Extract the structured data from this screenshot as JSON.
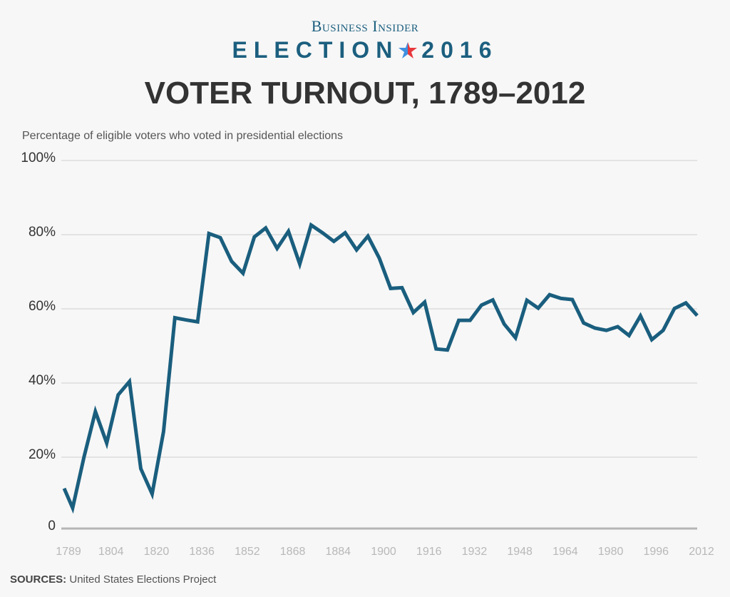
{
  "header": {
    "brand": "Business Insider",
    "election_word": "ELECTION",
    "election_year": "2016",
    "star_icon": "star-icon",
    "title": "VOTER TURNOUT, 1789–2012"
  },
  "footer": {
    "sources_label": "SOURCES:",
    "sources_text": " United States Elections Project"
  },
  "colors": {
    "line": "#1a5e7e",
    "brand": "#1c5f7f",
    "star_blue": "#3f8fe0",
    "star_red": "#e8383d"
  },
  "chart_data": {
    "type": "line",
    "title": "VOTER TURNOUT, 1789–2012",
    "subtitle": "Percentage of eligible voters who voted in presidential elections",
    "xlabel": "",
    "ylabel": "",
    "ylim": [
      0,
      100
    ],
    "xlim": [
      1789,
      2012
    ],
    "grid": true,
    "y_ticks": [
      0,
      20,
      40,
      60,
      80,
      100
    ],
    "y_tick_labels": [
      "0",
      "20%",
      "40%",
      "60%",
      "80%",
      "100%"
    ],
    "x_ticks": [
      1789,
      1804,
      1820,
      1836,
      1852,
      1868,
      1884,
      1900,
      1916,
      1932,
      1948,
      1964,
      1980,
      1996,
      2012
    ],
    "x_tick_labels": [
      "1789",
      "1804",
      "1820",
      "1836",
      "1852",
      "1868",
      "1884",
      "1900",
      "1916",
      "1932",
      "1948",
      "1964",
      "1980",
      "1996",
      "2012"
    ],
    "x": [
      1789,
      1792,
      1796,
      1800,
      1804,
      1808,
      1812,
      1816,
      1820,
      1824,
      1828,
      1832,
      1836,
      1840,
      1844,
      1848,
      1852,
      1856,
      1860,
      1864,
      1868,
      1872,
      1876,
      1880,
      1884,
      1888,
      1892,
      1896,
      1900,
      1904,
      1908,
      1912,
      1916,
      1920,
      1924,
      1928,
      1932,
      1936,
      1940,
      1944,
      1948,
      1952,
      1956,
      1960,
      1964,
      1968,
      1972,
      1976,
      1980,
      1984,
      1988,
      1992,
      1996,
      2000,
      2004,
      2008,
      2012
    ],
    "values": [
      11.6,
      6.3,
      20.1,
      32.3,
      23.8,
      36.8,
      40.4,
      16.9,
      10.1,
      26.9,
      57.6,
      57.0,
      56.5,
      80.3,
      79.2,
      72.8,
      69.6,
      79.4,
      81.8,
      76.3,
      80.9,
      72.1,
      82.6,
      80.5,
      78.2,
      80.5,
      75.9,
      79.6,
      73.7,
      65.5,
      65.7,
      59.0,
      61.8,
      49.2,
      48.9,
      56.9,
      56.9,
      61.0,
      62.4,
      55.9,
      52.2,
      62.3,
      60.2,
      63.8,
      62.8,
      62.5,
      56.2,
      54.8,
      54.2,
      55.2,
      52.8,
      58.1,
      51.7,
      54.2,
      60.1,
      61.6,
      58.2
    ]
  }
}
